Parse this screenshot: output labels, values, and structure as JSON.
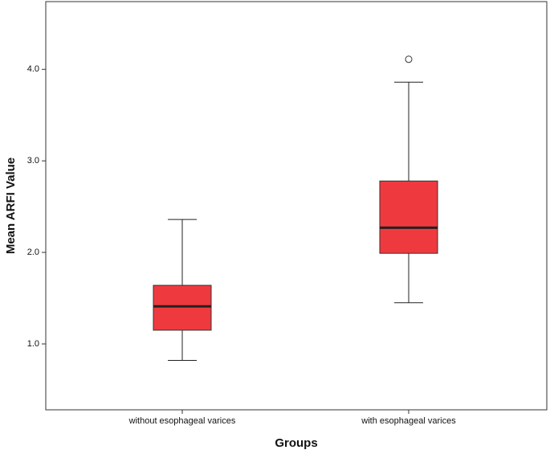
{
  "chart_data": {
    "type": "box",
    "x_label": "Groups",
    "y_label": "Mean ARFI Value",
    "categories": [
      "without esophageal varices",
      "with esophageal varices"
    ],
    "boxes": [
      {
        "min": 0.82,
        "q1": 1.15,
        "median": 1.41,
        "q3": 1.64,
        "max": 2.36,
        "outliers": []
      },
      {
        "min": 1.45,
        "q1": 1.99,
        "median": 2.27,
        "q3": 2.78,
        "max": 3.86,
        "outliers": [
          4.11
        ]
      }
    ],
    "color": "#ee3a3f",
    "ylim": [
      0.28,
      4.74
    ],
    "yticks": [
      {
        "value": 1,
        "label": "1.0"
      },
      {
        "value": 2,
        "label": "2.0"
      },
      {
        "value": 3,
        "label": "3.0"
      },
      {
        "value": 4,
        "label": "4.0"
      }
    ]
  }
}
